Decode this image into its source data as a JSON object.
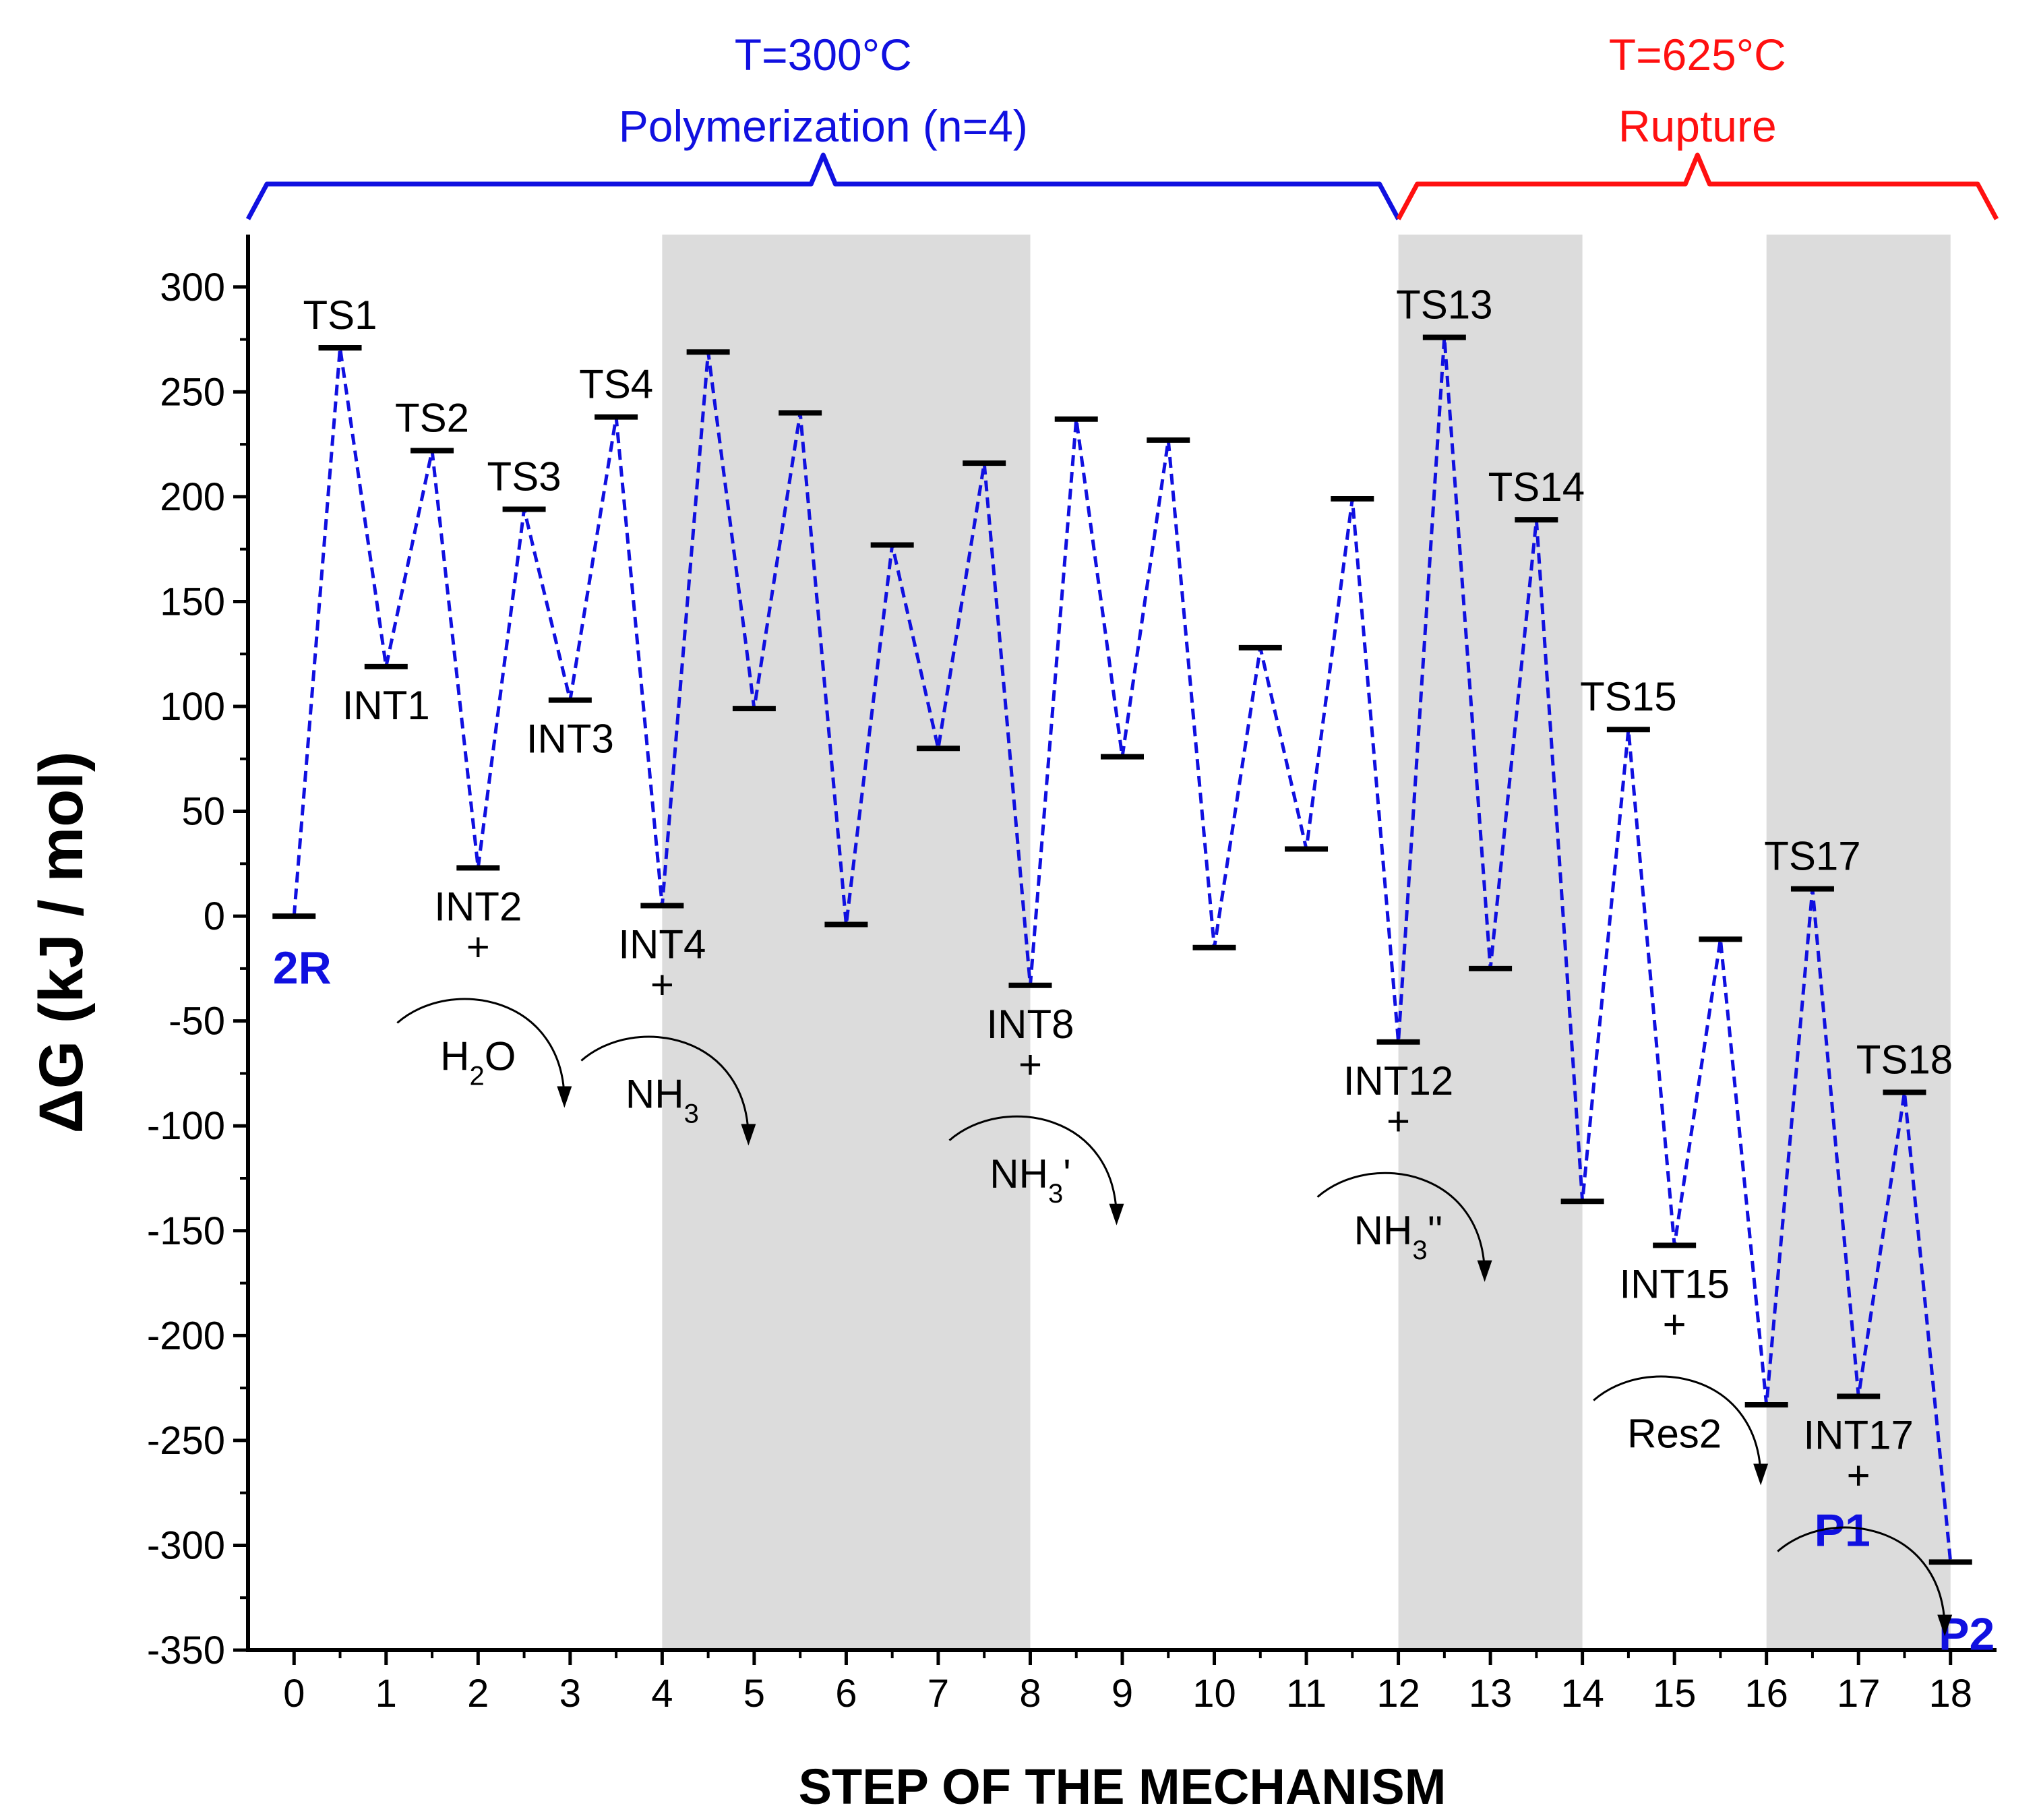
{
  "chart_data": {
    "type": "line",
    "title": "",
    "xlabel": "STEP OF THE MECHANISM",
    "ylabel": "ΔG (kJ / mol)",
    "xlim": [
      -0.5,
      18.5
    ],
    "ylim": [
      -350,
      325
    ],
    "x_ticks": [
      0,
      1,
      2,
      3,
      4,
      5,
      6,
      7,
      8,
      9,
      10,
      11,
      12,
      13,
      14,
      15,
      16,
      17,
      18
    ],
    "y_ticks": [
      300,
      250,
      200,
      150,
      100,
      50,
      0,
      -50,
      -100,
      -150,
      -200,
      -250,
      -300,
      -350
    ],
    "grid": false,
    "series": [
      {
        "name": "Gibbs free energy profile",
        "color": "#1010e0",
        "style": "dashed",
        "x": [
          0,
          0.5,
          1,
          1.5,
          2,
          2.5,
          3,
          3.5,
          4,
          4.5,
          5,
          5.5,
          6,
          6.5,
          7,
          7.5,
          8,
          8.5,
          9,
          9.5,
          10,
          10.5,
          11,
          11.5,
          12,
          12.5,
          13,
          13.5,
          14,
          14.5,
          15,
          15.5,
          16,
          16.5,
          17,
          17.5,
          18
        ],
        "values": [
          0,
          271,
          119,
          222,
          23,
          194,
          103,
          238,
          5,
          269,
          99,
          240,
          -4,
          177,
          80,
          216,
          -33,
          237,
          76,
          227,
          -15,
          128,
          32,
          199,
          -60,
          276,
          -25,
          189,
          -136,
          89,
          -157,
          -11,
          -233,
          13,
          -229,
          -84,
          -308
        ]
      }
    ],
    "state_labels": [
      {
        "text": "TS1",
        "x": 0.5,
        "y": 271,
        "pos": "above"
      },
      {
        "text": "TS2",
        "x": 1.5,
        "y": 222,
        "pos": "above"
      },
      {
        "text": "TS3",
        "x": 2.5,
        "y": 194,
        "pos": "above"
      },
      {
        "text": "TS4",
        "x": 3.5,
        "y": 238,
        "pos": "above"
      },
      {
        "text": "TS13",
        "x": 12.5,
        "y": 276,
        "pos": "above"
      },
      {
        "text": "TS14",
        "x": 13.5,
        "y": 189,
        "pos": "above"
      },
      {
        "text": "TS15",
        "x": 14.5,
        "y": 89,
        "pos": "above"
      },
      {
        "text": "TS17",
        "x": 16.5,
        "y": 13,
        "pos": "above"
      },
      {
        "text": "TS18",
        "x": 17.5,
        "y": -84,
        "pos": "above"
      },
      {
        "text": "INT1",
        "x": 1,
        "y": 119,
        "pos": "below"
      },
      {
        "text": "INT2",
        "x": 2,
        "y": 23,
        "pos": "below"
      },
      {
        "text": "INT3",
        "x": 3,
        "y": 103,
        "pos": "below"
      },
      {
        "text": "INT4",
        "x": 4,
        "y": 5,
        "pos": "below"
      },
      {
        "text": "INT8",
        "x": 8,
        "y": -33,
        "pos": "below"
      },
      {
        "text": "INT12",
        "x": 12,
        "y": -60,
        "pos": "below"
      },
      {
        "text": "INT15",
        "x": 15,
        "y": -157,
        "pos": "below"
      },
      {
        "text": "INT17",
        "x": 17,
        "y": -229,
        "pos": "below"
      }
    ],
    "bold_labels": [
      {
        "text": "2R",
        "x": 0,
        "y": 0
      },
      {
        "text": "P1",
        "x": 17,
        "y": -229
      },
      {
        "text": "P2",
        "x": 18,
        "y": -308
      }
    ],
    "released_species": [
      {
        "x": 2,
        "y": 23,
        "main": "H",
        "sub": "2",
        "tail": "O"
      },
      {
        "x": 4,
        "y": 5,
        "main": "NH",
        "sub": "3",
        "tail": ""
      },
      {
        "x": 8,
        "y": -33,
        "main": "NH",
        "sub": "3",
        "tail": "'"
      },
      {
        "x": 12,
        "y": -60,
        "main": "NH",
        "sub": "3",
        "tail": "''"
      },
      {
        "x": 15,
        "y": -157,
        "main": "Res2",
        "sub": "",
        "tail": ""
      },
      {
        "x": 17,
        "y": -229,
        "main": "",
        "sub": "",
        "tail": ""
      }
    ],
    "plus_sign": "+",
    "shaded_regions": [
      [
        4,
        8
      ],
      [
        12,
        14
      ],
      [
        16,
        18
      ]
    ],
    "phases": [
      {
        "line1": "T=300°C",
        "line2": "Polymerization (n=4)",
        "x_start": -0.5,
        "x_end": 12,
        "color": "#1010e0"
      },
      {
        "line1": "T=625°C",
        "line2": "Rupture",
        "x_start": 12,
        "x_end": 18.5,
        "color": "#ff1010"
      }
    ]
  }
}
